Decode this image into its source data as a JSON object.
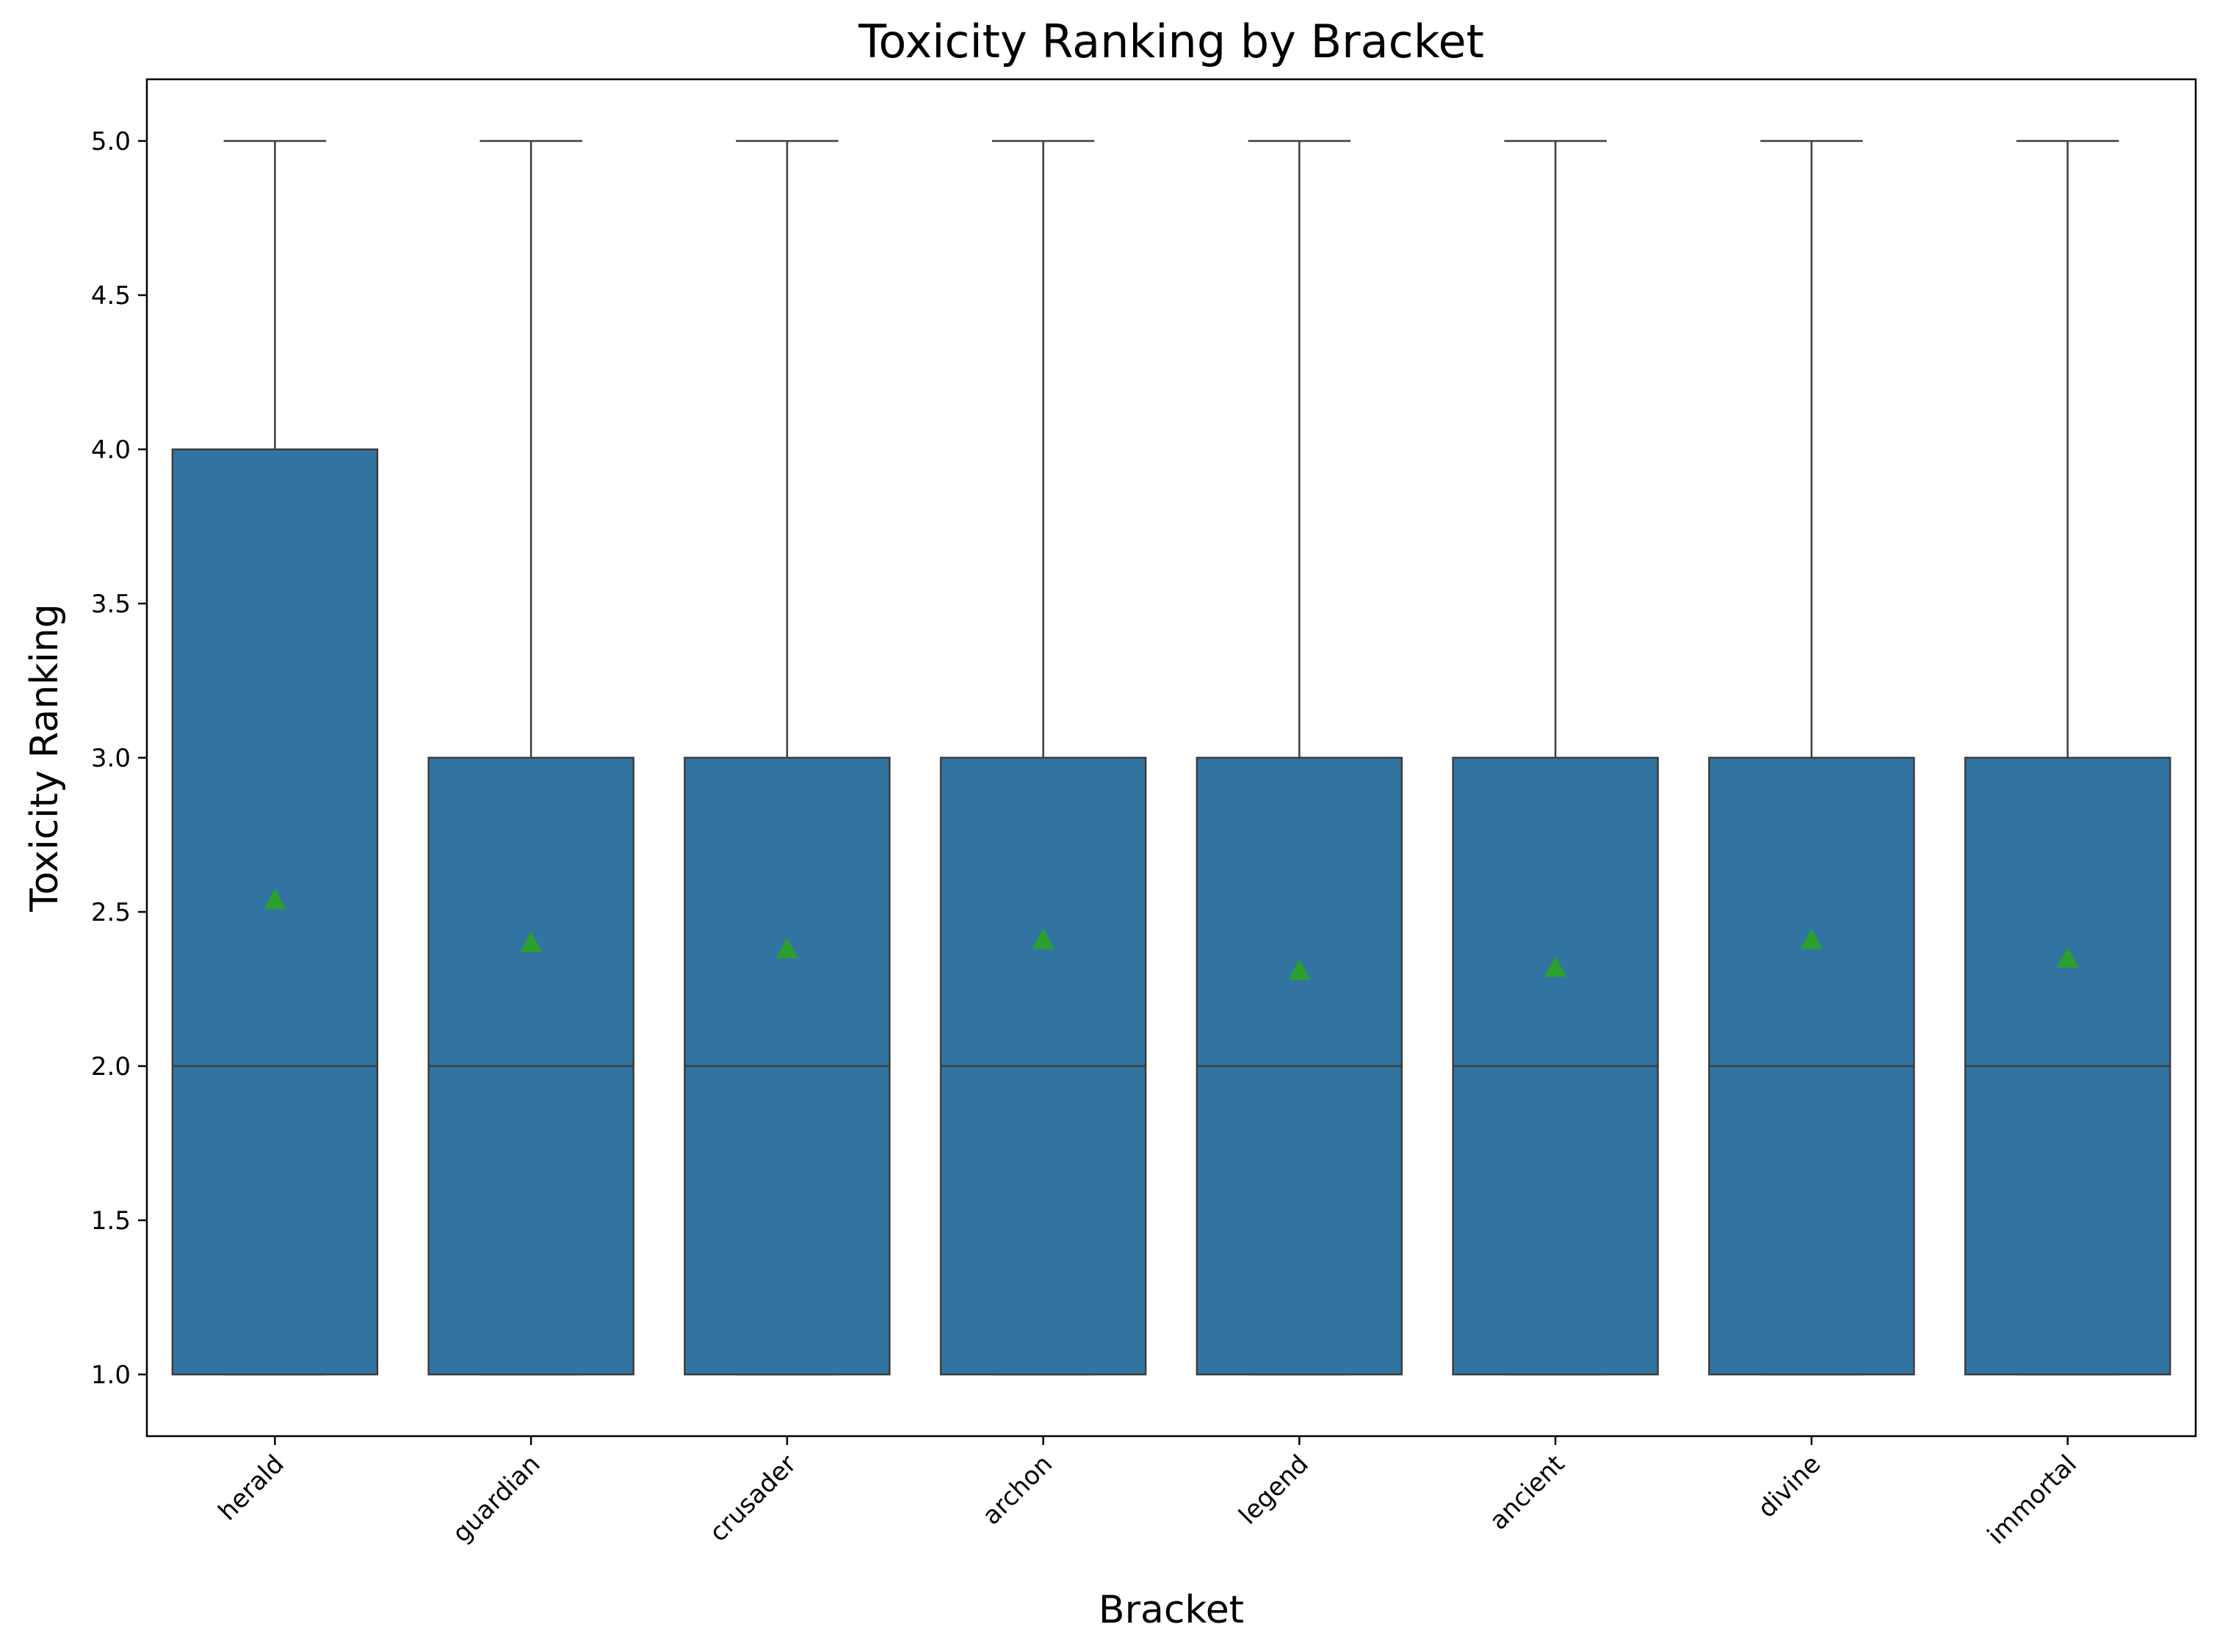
{
  "chart_data": {
    "type": "box",
    "title": "Toxicity Ranking by Bracket",
    "xlabel": "Bracket",
    "ylabel": "Toxicity Ranking",
    "categories": [
      "herald",
      "guardian",
      "crusader",
      "archon",
      "legend",
      "ancient",
      "divine",
      "immortal"
    ],
    "ylim": [
      0.8,
      5.2
    ],
    "yticks": [
      1.0,
      1.5,
      2.0,
      2.5,
      3.0,
      3.5,
      4.0,
      4.5,
      5.0
    ],
    "ytick_labels": [
      "1.0",
      "1.5",
      "2.0",
      "2.5",
      "3.0",
      "3.5",
      "4.0",
      "4.5",
      "5.0"
    ],
    "grid": false,
    "boxes": [
      {
        "category": "herald",
        "whisker_low": 1.0,
        "q1": 1.0,
        "median": 2.0,
        "q3": 4.0,
        "whisker_high": 5.0,
        "mean": 2.54
      },
      {
        "category": "guardian",
        "whisker_low": 1.0,
        "q1": 1.0,
        "median": 2.0,
        "q3": 3.0,
        "whisker_high": 5.0,
        "mean": 2.4
      },
      {
        "category": "crusader",
        "whisker_low": 1.0,
        "q1": 1.0,
        "median": 2.0,
        "q3": 3.0,
        "whisker_high": 5.0,
        "mean": 2.38
      },
      {
        "category": "archon",
        "whisker_low": 1.0,
        "q1": 1.0,
        "median": 2.0,
        "q3": 3.0,
        "whisker_high": 5.0,
        "mean": 2.41
      },
      {
        "category": "legend",
        "whisker_low": 1.0,
        "q1": 1.0,
        "median": 2.0,
        "q3": 3.0,
        "whisker_high": 5.0,
        "mean": 2.31
      },
      {
        "category": "ancient",
        "whisker_low": 1.0,
        "q1": 1.0,
        "median": 2.0,
        "q3": 3.0,
        "whisker_high": 5.0,
        "mean": 2.32
      },
      {
        "category": "divine",
        "whisker_low": 1.0,
        "q1": 1.0,
        "median": 2.0,
        "q3": 3.0,
        "whisker_high": 5.0,
        "mean": 2.41
      },
      {
        "category": "immortal",
        "whisker_low": 1.0,
        "q1": 1.0,
        "median": 2.0,
        "q3": 3.0,
        "whisker_high": 5.0,
        "mean": 2.35
      }
    ],
    "colors": {
      "box_fill": "#3274a1",
      "box_edge": "#3d3d3d",
      "mean_marker": "#2ca02c"
    }
  }
}
